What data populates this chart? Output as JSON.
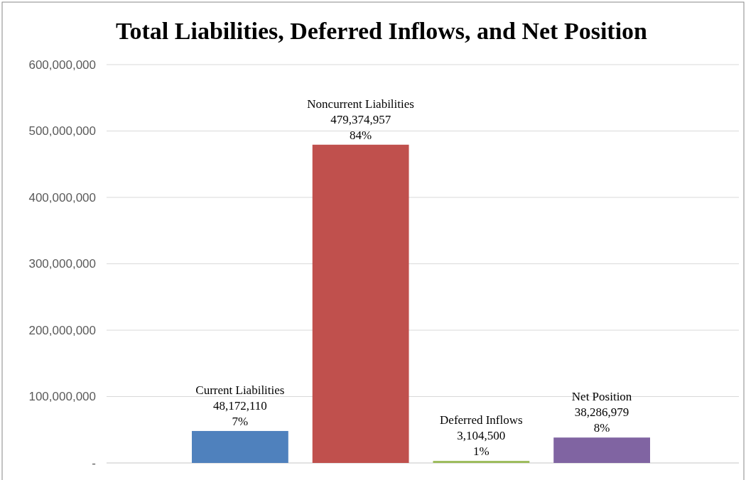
{
  "chart_data": {
    "type": "bar",
    "title": "Total Liabilities, Deferred Inflows, and Net Position",
    "categories": [
      "Current Liabilities",
      "Noncurrent Liabilities",
      "Deferred Inflows",
      "Net Position"
    ],
    "values": [
      48172110,
      479374957,
      3104500,
      38286979
    ],
    "colors": [
      "#4f81bd",
      "#c0504d",
      "#9bbb59",
      "#8064a2"
    ],
    "value_labels": [
      "48,172,110\n7%",
      "479,374,957\n84%",
      "3,104,500\n1%",
      "38,286,979\n8%"
    ],
    "ylim": [
      0,
      600000000
    ],
    "yticks": [
      {
        "value": 0,
        "label": "-"
      },
      {
        "value": 100000000,
        "label": "100,000,000"
      },
      {
        "value": 200000000,
        "label": "200,000,000"
      },
      {
        "value": 300000000,
        "label": "300,000,000"
      },
      {
        "value": 400000000,
        "label": "400,000,000"
      },
      {
        "value": 500000000,
        "label": "500,000,000"
      },
      {
        "value": 600000000,
        "label": "600,000,000"
      }
    ],
    "grid": "y",
    "tick_labels": "y"
  }
}
